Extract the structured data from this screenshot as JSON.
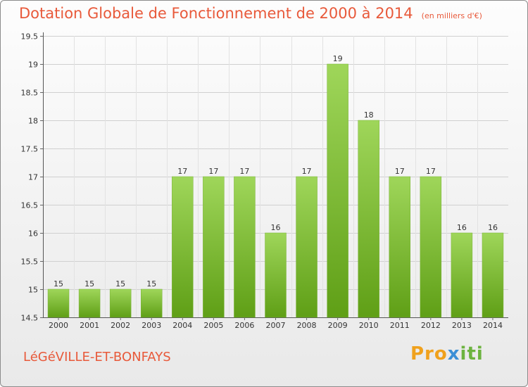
{
  "header": {
    "title": "Dotation Globale de Fonctionnement de 2000 à 2014",
    "unit": "(en milliers d'€)"
  },
  "footer": {
    "commune": "LéGéVILLE-ET-BONFAYS",
    "logo_parts": [
      "Pro",
      "x",
      "iti"
    ]
  },
  "colors": {
    "bar_top": "#9fd65a",
    "bar_bottom": "#5f9f16",
    "title": "#e8593a"
  },
  "chart_data": {
    "type": "bar",
    "title": "Dotation Globale de Fonctionnement de 2000 à 2014",
    "xlabel": "",
    "ylabel": "",
    "categories": [
      "2000",
      "2001",
      "2002",
      "2003",
      "2004",
      "2005",
      "2006",
      "2007",
      "2008",
      "2009",
      "2010",
      "2011",
      "2012",
      "2013",
      "2014"
    ],
    "values": [
      15,
      15,
      15,
      15,
      17,
      17,
      17,
      16,
      17,
      19,
      18,
      17,
      17,
      16,
      16
    ],
    "value_labels": [
      "15",
      "15",
      "15",
      "15",
      "17",
      "17",
      "17",
      "16",
      "17",
      "19",
      "18",
      "17",
      "17",
      "16",
      "16"
    ],
    "ylim": [
      14.5,
      19.5
    ],
    "yticks": [
      14.5,
      15,
      15.5,
      16,
      16.5,
      17,
      17.5,
      18,
      18.5,
      19,
      19.5
    ],
    "ytick_labels": [
      "14.5",
      "15",
      "15.5",
      "16",
      "16.5",
      "17",
      "17.5",
      "18",
      "18.5",
      "19",
      "19.5"
    ],
    "grid": true
  }
}
